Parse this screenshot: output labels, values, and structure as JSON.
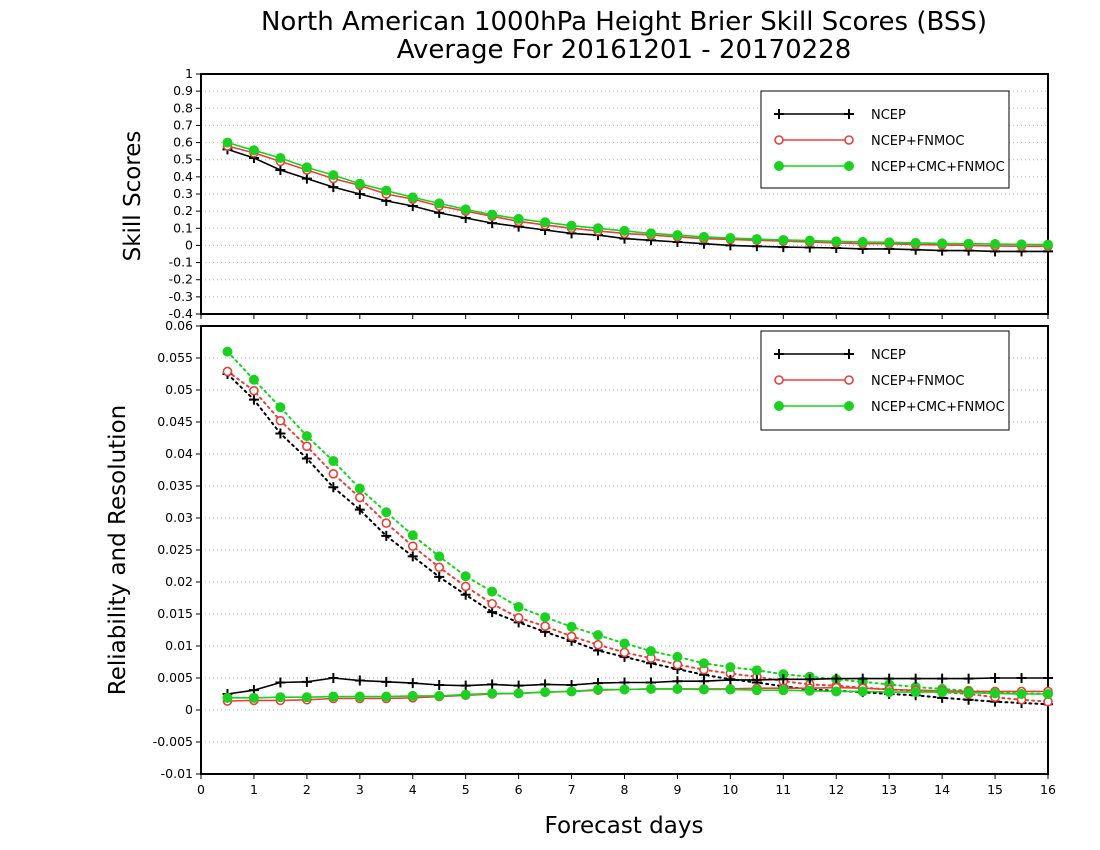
{
  "title_line1": "North American 1000hPa Height Brier Skill Scores (BSS)",
  "title_line2": "Average For 20161201 - 20170228",
  "xlabel": "Forecast days",
  "colors": {
    "ncep": "#000000",
    "ncep_fnmoc": "#e8403a",
    "ncep_cmc_fnmoc": "#19d21f"
  },
  "chart_data": [
    {
      "type": "line",
      "panel": "top",
      "ylabel": "Skill Scores",
      "xlim": [
        0,
        16
      ],
      "ylim": [
        -0.4,
        1
      ],
      "x_ticks": [
        0,
        1,
        2,
        3,
        4,
        5,
        6,
        7,
        8,
        9,
        10,
        11,
        12,
        13,
        14,
        15,
        16
      ],
      "y_ticks": [
        -0.4,
        -0.3,
        -0.2,
        -0.1,
        0,
        0.1,
        0.2,
        0.3,
        0.4,
        0.5,
        0.6,
        0.7,
        0.8,
        0.9,
        1
      ],
      "grid": true,
      "legend_position": "top-right",
      "x": [
        0.5,
        1,
        1.5,
        2,
        2.5,
        3,
        3.5,
        4,
        4.5,
        5,
        5.5,
        6,
        6.5,
        7,
        7.5,
        8,
        8.5,
        9,
        9.5,
        10,
        10.5,
        11,
        11.5,
        12,
        12.5,
        13,
        13.5,
        14,
        14.5,
        15,
        15.5,
        16
      ],
      "series": [
        {
          "name": "NCEP",
          "marker": "plus",
          "line": "solid",
          "values": [
            0.56,
            0.51,
            0.44,
            0.39,
            0.34,
            0.3,
            0.26,
            0.23,
            0.19,
            0.16,
            0.13,
            0.11,
            0.09,
            0.07,
            0.06,
            0.04,
            0.03,
            0.02,
            0.01,
            0.0,
            -0.005,
            -0.01,
            -0.012,
            -0.015,
            -0.02,
            -0.02,
            -0.025,
            -0.03,
            -0.03,
            -0.035,
            -0.035,
            -0.035
          ]
        },
        {
          "name": "NCEP+FNMOC",
          "marker": "open-circle",
          "line": "solid",
          "values": [
            0.58,
            0.54,
            0.49,
            0.44,
            0.39,
            0.35,
            0.3,
            0.27,
            0.23,
            0.2,
            0.17,
            0.14,
            0.12,
            0.1,
            0.085,
            0.07,
            0.06,
            0.05,
            0.04,
            0.035,
            0.03,
            0.025,
            0.02,
            0.015,
            0.01,
            0.01,
            0.005,
            0.003,
            0.0,
            -0.003,
            -0.005,
            -0.005
          ]
        },
        {
          "name": "NCEP+CMC+FNMOC",
          "marker": "filled-circle",
          "line": "solid",
          "values": [
            0.6,
            0.555,
            0.51,
            0.455,
            0.41,
            0.36,
            0.32,
            0.28,
            0.245,
            0.21,
            0.18,
            0.155,
            0.135,
            0.115,
            0.1,
            0.085,
            0.07,
            0.06,
            0.05,
            0.043,
            0.037,
            0.032,
            0.028,
            0.024,
            0.02,
            0.018,
            0.015,
            0.012,
            0.01,
            0.008,
            0.006,
            0.005
          ]
        }
      ]
    },
    {
      "type": "line",
      "panel": "bottom",
      "ylabel": "Reliability and Resolution",
      "xlim": [
        0,
        16
      ],
      "ylim": [
        -0.01,
        0.06
      ],
      "x_ticks": [
        0,
        1,
        2,
        3,
        4,
        5,
        6,
        7,
        8,
        9,
        10,
        11,
        12,
        13,
        14,
        15,
        16
      ],
      "y_ticks": [
        -0.01,
        -0.005,
        0,
        0.005,
        0.01,
        0.015,
        0.02,
        0.025,
        0.03,
        0.035,
        0.04,
        0.045,
        0.05,
        0.055,
        0.06
      ],
      "grid": true,
      "legend_position": "top-right",
      "x": [
        0.5,
        1,
        1.5,
        2,
        2.5,
        3,
        3.5,
        4,
        4.5,
        5,
        5.5,
        6,
        6.5,
        7,
        7.5,
        8,
        8.5,
        9,
        9.5,
        10,
        10.5,
        11,
        11.5,
        12,
        12.5,
        13,
        13.5,
        14,
        14.5,
        15,
        15.5,
        16
      ],
      "series": [
        {
          "name": "NCEP",
          "group": "resolution",
          "marker": "plus",
          "line": "dotted",
          "values": [
            0.0525,
            0.0485,
            0.0432,
            0.0393,
            0.0348,
            0.0313,
            0.0272,
            0.024,
            0.0208,
            0.018,
            0.0153,
            0.0137,
            0.0122,
            0.0108,
            0.0093,
            0.0083,
            0.0073,
            0.0064,
            0.0055,
            0.0048,
            0.0043,
            0.0037,
            0.0032,
            0.003,
            0.0028,
            0.0025,
            0.0023,
            0.0019,
            0.0016,
            0.0013,
            0.0011,
            0.0009
          ]
        },
        {
          "name": "NCEP+FNMOC",
          "group": "resolution",
          "marker": "open-circle",
          "line": "dotted",
          "values": [
            0.0529,
            0.0499,
            0.0452,
            0.0412,
            0.0369,
            0.0332,
            0.0292,
            0.0256,
            0.0223,
            0.0193,
            0.0166,
            0.0144,
            0.0131,
            0.0115,
            0.0102,
            0.009,
            0.0081,
            0.0071,
            0.0063,
            0.0057,
            0.0052,
            0.0045,
            0.004,
            0.0038,
            0.0035,
            0.0032,
            0.003,
            0.0028,
            0.0025,
            0.002,
            0.0016,
            0.0013
          ]
        },
        {
          "name": "NCEP+CMC+FNMOC",
          "group": "resolution",
          "marker": "filled-circle",
          "line": "dotted",
          "values": [
            0.056,
            0.0516,
            0.0473,
            0.0428,
            0.0389,
            0.0346,
            0.0309,
            0.0273,
            0.024,
            0.0209,
            0.0185,
            0.0161,
            0.0145,
            0.013,
            0.0117,
            0.0104,
            0.0092,
            0.0083,
            0.0073,
            0.0067,
            0.0062,
            0.0056,
            0.0052,
            0.0048,
            0.0044,
            0.004,
            0.0036,
            0.0033,
            0.003,
            0.0028,
            0.0026,
            0.0025
          ]
        },
        {
          "name": "NCEP",
          "group": "reliability",
          "marker": "plus",
          "line": "solid",
          "values": [
            0.0025,
            0.0031,
            0.0043,
            0.0044,
            0.005,
            0.0046,
            0.0044,
            0.0042,
            0.0039,
            0.0038,
            0.004,
            0.0038,
            0.004,
            0.0039,
            0.0042,
            0.0043,
            0.0043,
            0.0045,
            0.0045,
            0.0047,
            0.0047,
            0.0048,
            0.0048,
            0.0049,
            0.0049,
            0.0049,
            0.0049,
            0.0049,
            0.0049,
            0.005,
            0.005,
            0.005
          ]
        },
        {
          "name": "NCEP+FNMOC",
          "group": "reliability",
          "marker": "open-circle",
          "line": "solid",
          "values": [
            0.0014,
            0.0015,
            0.0015,
            0.0016,
            0.0018,
            0.0018,
            0.0018,
            0.0019,
            0.0021,
            0.0023,
            0.0025,
            0.0026,
            0.0028,
            0.0029,
            0.0031,
            0.0032,
            0.0033,
            0.0033,
            0.0033,
            0.0033,
            0.0034,
            0.0034,
            0.0034,
            0.0035,
            0.0034,
            0.0032,
            0.0031,
            0.003,
            0.0029,
            0.0029,
            0.0029,
            0.0029
          ]
        },
        {
          "name": "NCEP+CMC+FNMOC",
          "group": "reliability",
          "marker": "filled-circle",
          "line": "solid",
          "values": [
            0.0019,
            0.0019,
            0.002,
            0.002,
            0.0021,
            0.0021,
            0.0021,
            0.0022,
            0.0022,
            0.0024,
            0.0026,
            0.0026,
            0.0028,
            0.0029,
            0.0032,
            0.0032,
            0.0033,
            0.0033,
            0.0032,
            0.0032,
            0.0031,
            0.0031,
            0.003,
            0.0029,
            0.0029,
            0.0028,
            0.0028,
            0.0028,
            0.0027,
            0.0026,
            0.0025,
            0.0025
          ]
        }
      ]
    }
  ]
}
